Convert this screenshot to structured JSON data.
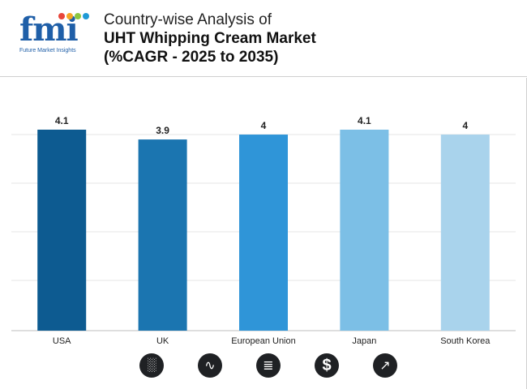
{
  "brand": {
    "logo_text": "fmi",
    "tagline": "Future Market Insights",
    "dot_colors": [
      "#e8463a",
      "#f5a623",
      "#8cc63f",
      "#1f9ad6"
    ]
  },
  "title": {
    "line1": "Country-wise Analysis of",
    "line2": "UHT Whipping Cream Market",
    "line3": "(%CAGR - 2025 to 2035)"
  },
  "chart_data": {
    "type": "bar",
    "title": "Country-wise Analysis of UHT Whipping Cream Market (%CAGR - 2025 to 2035)",
    "categories": [
      "USA",
      "UK",
      "European Union",
      "Japan",
      "South Korea"
    ],
    "values": [
      4.1,
      3.9,
      4,
      4.1,
      4
    ],
    "value_labels": [
      "4.1",
      "3.9",
      "4",
      "4.1",
      "4"
    ],
    "colors": [
      "#0d5b91",
      "#1b75b0",
      "#2f95d8",
      "#7cbfe6",
      "#a9d3ec"
    ],
    "xlabel": "",
    "ylabel": "",
    "ylim": [
      0,
      4.1
    ],
    "grid": true
  },
  "footer_icons": [
    "growth-chart-icon",
    "trend-analysis-icon",
    "report-icon",
    "dollar-icon",
    "market-trend-icon"
  ],
  "footer_icon_glyphs": [
    "░",
    "∿",
    "≣",
    "$",
    "↗"
  ]
}
